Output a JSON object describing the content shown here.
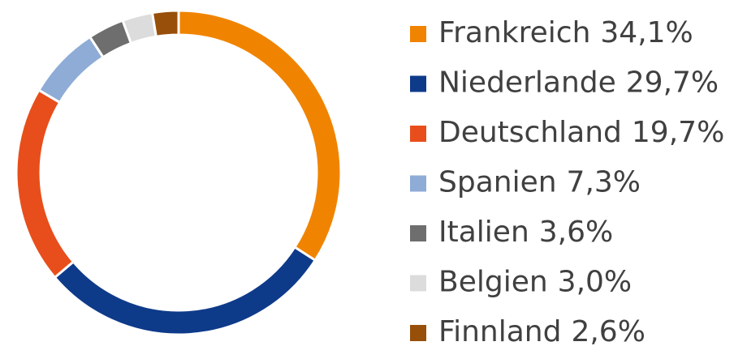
{
  "chart_data": {
    "type": "donut",
    "categories": [
      "Frankreich",
      "Niederlande",
      "Deutschland",
      "Spanien",
      "Italien",
      "Belgien",
      "Finnland"
    ],
    "values": [
      34.1,
      29.7,
      19.7,
      7.3,
      3.6,
      3.0,
      2.6
    ],
    "value_labels": [
      "34,1%",
      "29,7%",
      "19,7%",
      "7,3%",
      "3,6%",
      "3,0%",
      "2,6%"
    ],
    "colors": [
      "#f08400",
      "#0e3a8a",
      "#e84e1b",
      "#8eacd6",
      "#6e6e6e",
      "#dcdcdc",
      "#974f0a"
    ],
    "legend": "right"
  }
}
